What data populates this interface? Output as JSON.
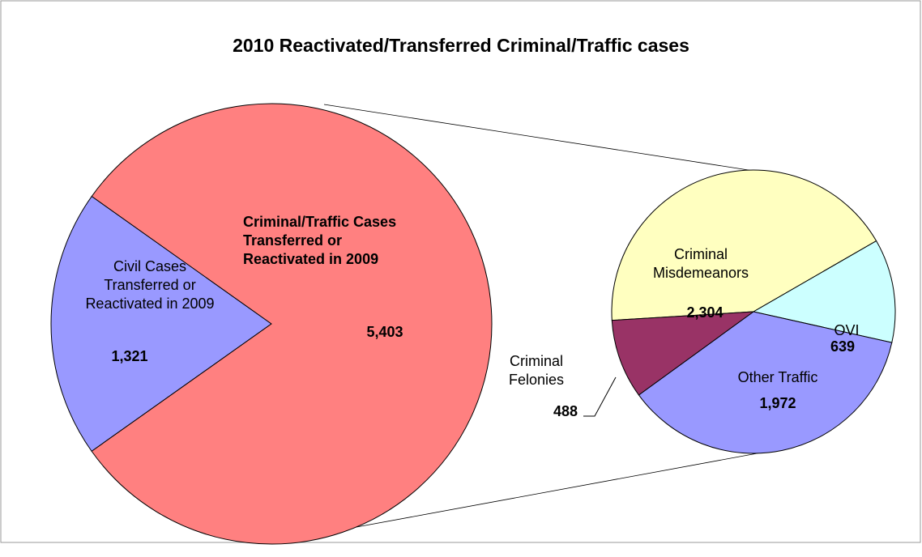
{
  "chart_data": [
    {
      "type": "pie",
      "title": "2010 Reactivated/Transferred Criminal/Traffic cases",
      "categories": [
        "Civil Cases Transferred or Reactivated in 2009",
        "Criminal/Traffic Cases Transferred or Reactivated in 2009"
      ],
      "values": [
        1321,
        5403
      ],
      "value_labels": [
        "1,321",
        "5,403"
      ],
      "colors": [
        "#9999ff",
        "#ff8080"
      ]
    },
    {
      "type": "pie",
      "categories": [
        "Criminal Misdemeanors",
        "OVI",
        "Other Traffic",
        "Criminal Felonies"
      ],
      "values": [
        2304,
        639,
        1972,
        488
      ],
      "value_labels": [
        "2,304",
        "639",
        "1,972",
        "488"
      ],
      "colors": [
        "#ffffc0",
        "#ccffff",
        "#9999ff",
        "#993366"
      ]
    }
  ]
}
